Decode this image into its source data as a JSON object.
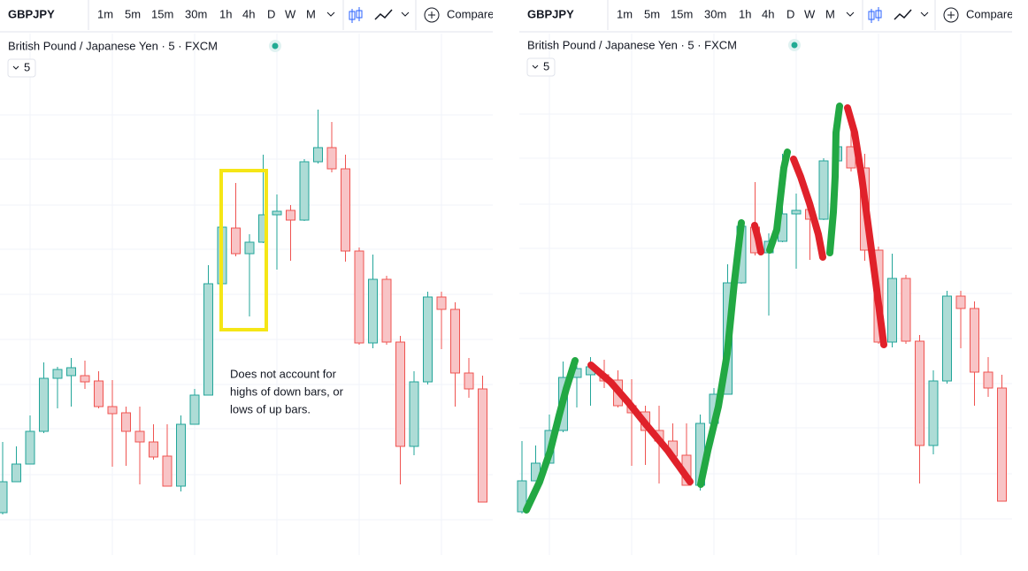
{
  "panels": [
    {
      "toolbar": {
        "symbol": "GBPJPY",
        "intervals": [
          "1m",
          "5m",
          "15m",
          "30m",
          "1h",
          "4h",
          "D",
          "W",
          "M"
        ],
        "compare": "Compare"
      },
      "legend": {
        "title": "British Pound / Japanese Yen · 5 · FXCM",
        "interval_badge": "5"
      },
      "annotation": [
        "Does not account for",
        "highs of down bars, or",
        "lows of up bars."
      ]
    },
    {
      "toolbar": {
        "symbol": "GBPJPY",
        "intervals": [
          "1m",
          "5m",
          "15m",
          "30m",
          "1h",
          "4h",
          "D",
          "W",
          "M"
        ],
        "compare": "Compare"
      },
      "legend": {
        "title": "British Pound / Japanese Yen · 5 · FXCM",
        "interval_badge": "5"
      }
    }
  ]
}
